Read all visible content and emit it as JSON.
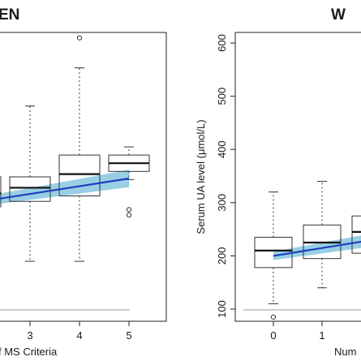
{
  "chart_data": [
    {
      "type": "box",
      "title": "EN",
      "xlabel": "f MS Criteria",
      "ylabel": "",
      "x_ticks": [
        "3",
        "4",
        "5"
      ],
      "ylim": [
        80,
        610
      ],
      "grid": false,
      "boxes": [
        {
          "x": 2,
          "whisker_low": null,
          "q1": 290,
          "median": 315,
          "q3": 345,
          "whisker_high": null,
          "outliers": []
        },
        {
          "x": 3,
          "whisker_low": 190,
          "q1": 300,
          "median": 325,
          "q3": 345,
          "whisker_high": 475,
          "outliers": []
        },
        {
          "x": 4,
          "whisker_low": 190,
          "q1": 310,
          "median": 350,
          "q3": 385,
          "whisker_high": 545,
          "outliers": [
            600
          ]
        },
        {
          "x": 5,
          "whisker_low": 340,
          "q1": 355,
          "median": 370,
          "q3": 385,
          "whisker_high": 400,
          "outliers": [
            275,
            285
          ]
        }
      ],
      "trend": {
        "color": "#1f3fbf",
        "band_color": "#7ec3de",
        "x": [
          1.6,
          5
        ],
        "y": [
          303,
          342
        ],
        "band_low_start": 294,
        "band_high_start": 312,
        "band_low_end": 326,
        "band_high_end": 358
      }
    },
    {
      "type": "box",
      "title": "W",
      "xlabel": "Num",
      "ylabel": "Serum UA level (μmol/L)",
      "x_ticks": [
        "0",
        "1"
      ],
      "y_ticks": [
        100,
        200,
        300,
        400,
        500,
        600
      ],
      "ylim": [
        80,
        620
      ],
      "grid": false,
      "boxes": [
        {
          "x": 0,
          "whisker_low": 110,
          "q1": 178,
          "median": 210,
          "q3": 235,
          "whisker_high": 320,
          "outliers": [
            85
          ]
        },
        {
          "x": 1,
          "whisker_low": 140,
          "q1": 195,
          "median": 225,
          "q3": 258,
          "whisker_high": 340,
          "outliers": []
        },
        {
          "x": 2,
          "whisker_low": null,
          "q1": 205,
          "median": 245,
          "q3": 275,
          "whisker_high": null,
          "outliers": []
        }
      ],
      "trend": {
        "color": "#1f3fbf",
        "band_color": "#7ec3de",
        "x": [
          0,
          1.9
        ],
        "y": [
          200,
          228
        ],
        "band_low_start": 192,
        "band_high_start": 208,
        "band_low_end": 216,
        "band_high_end": 240
      }
    }
  ]
}
